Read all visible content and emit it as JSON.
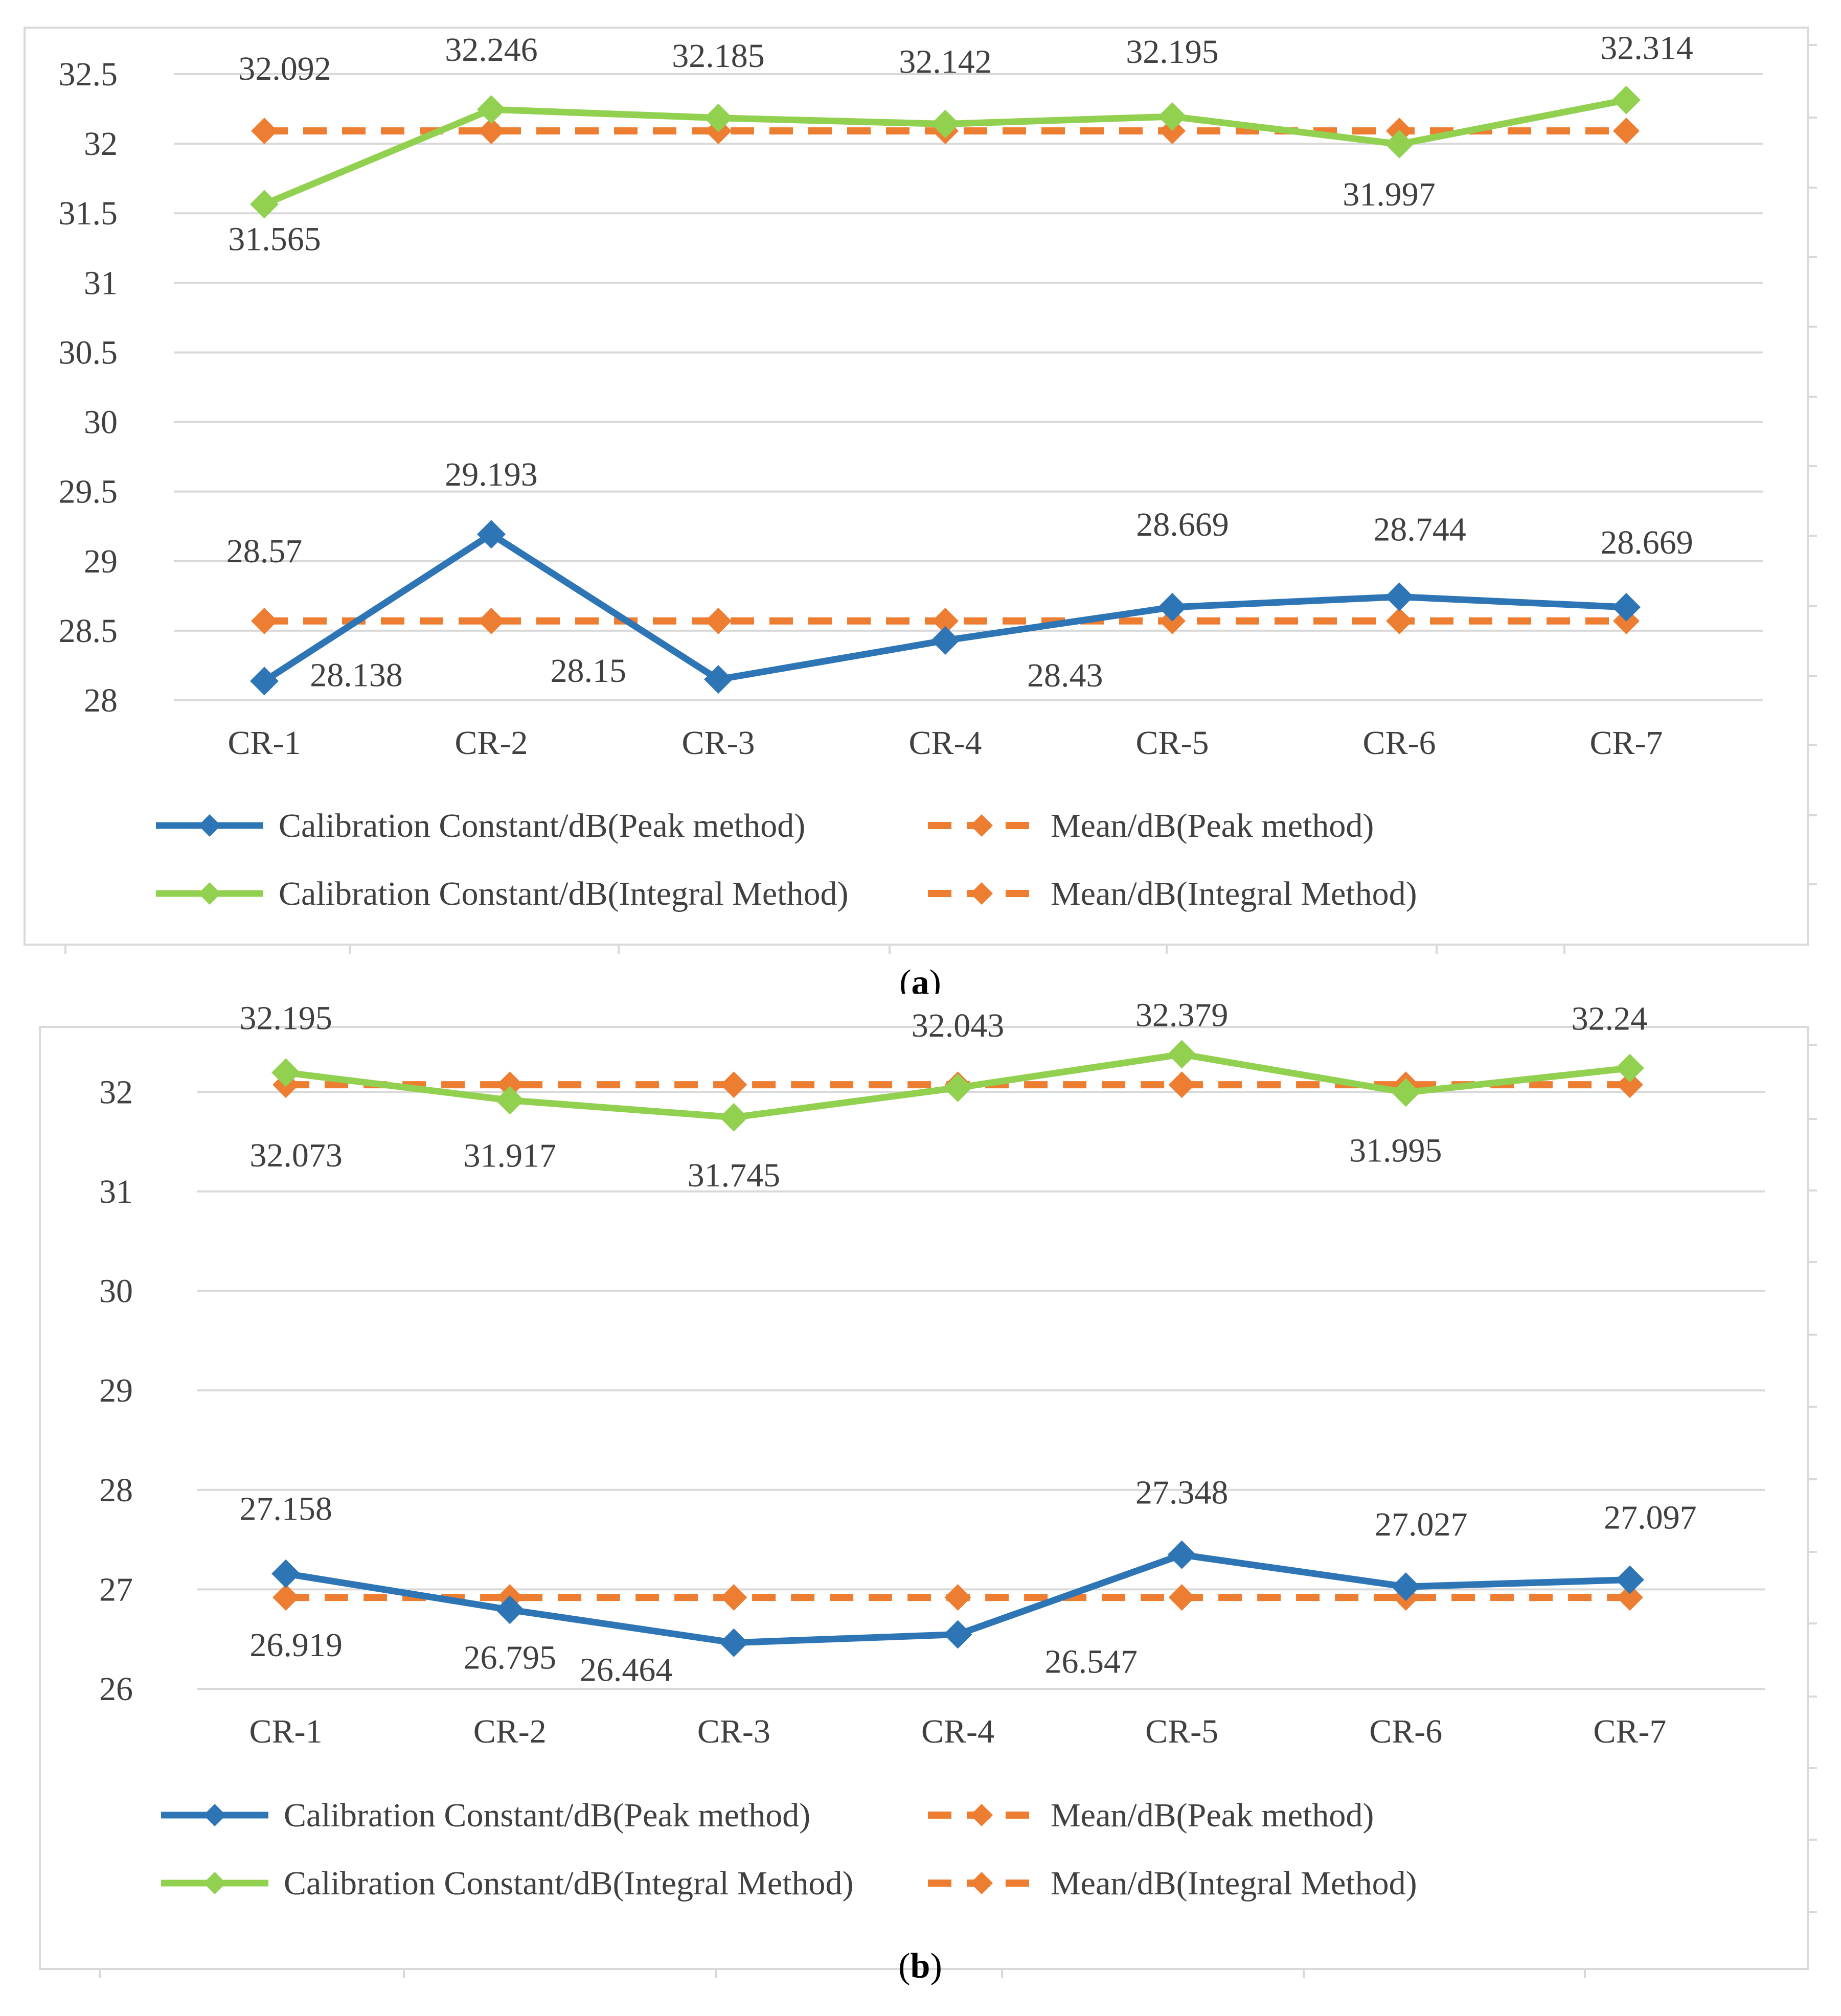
{
  "chart_data": [
    {
      "id": "a",
      "type": "line",
      "caption": {
        "open": "(",
        "letter": "a",
        "close": ")"
      },
      "categories": [
        "CR-1",
        "CR-2",
        "CR-3",
        "CR-4",
        "CR-5",
        "CR-6",
        "CR-7"
      ],
      "ylim": [
        28,
        32.5
      ],
      "yticks": [
        "28",
        "28.5",
        "29",
        "29.5",
        "30",
        "30.5",
        "31",
        "31.5",
        "32",
        "32.5"
      ],
      "grid": true,
      "legend_position": "bottom",
      "series": [
        {
          "name": "Calibration Constant/dB(Peak method)",
          "color": "#2E75B6",
          "dashed": false,
          "values": [
            28.138,
            29.193,
            28.15,
            28.43,
            28.669,
            28.744,
            28.669
          ],
          "labels": [
            "28.138",
            "29.193",
            "28.15",
            "28.43",
            "28.669",
            "28.744",
            "28.669"
          ]
        },
        {
          "name": "Mean/dB(Peak method)",
          "color": "#ED7D31",
          "dashed": true,
          "values": [
            28.57,
            28.57,
            28.57,
            28.57,
            28.57,
            28.57,
            28.57
          ],
          "labels": [
            "28.57",
            "",
            "",
            "",
            "",
            "",
            ""
          ]
        },
        {
          "name": "Calibration Constant/dB(Integral Method)",
          "color": "#92D050",
          "dashed": false,
          "values": [
            31.565,
            32.246,
            32.185,
            32.142,
            32.195,
            31.997,
            32.314
          ],
          "labels": [
            "31.565",
            "32.246",
            "32.185",
            "32.142",
            "32.195",
            "31.997",
            "32.314"
          ]
        },
        {
          "name": "Mean/dB(Integral Method)",
          "color": "#ED7D31",
          "dashed": true,
          "values": [
            32.092,
            32.092,
            32.092,
            32.092,
            32.092,
            32.092,
            32.092
          ],
          "labels": [
            "32.092",
            "",
            "",
            "",
            "",
            "",
            ""
          ]
        }
      ]
    },
    {
      "id": "b",
      "type": "line",
      "caption": {
        "open": "(",
        "letter": "b",
        "close": ")"
      },
      "categories": [
        "CR-1",
        "CR-2",
        "CR-3",
        "CR-4",
        "CR-5",
        "CR-6",
        "CR-7"
      ],
      "ylim": [
        26,
        32.5
      ],
      "yticks": [
        "26",
        "27",
        "28",
        "29",
        "30",
        "31",
        "32"
      ],
      "grid": true,
      "legend_position": "bottom",
      "series": [
        {
          "name": "Calibration Constant/dB(Peak method)",
          "color": "#2E75B6",
          "dashed": false,
          "values": [
            27.158,
            26.795,
            26.464,
            26.547,
            27.348,
            27.027,
            27.097
          ],
          "labels": [
            "27.158",
            "26.795",
            "26.464",
            "26.547",
            "27.348",
            "27.027",
            "27.097"
          ]
        },
        {
          "name": "Mean/dB(Peak method)",
          "color": "#ED7D31",
          "dashed": true,
          "values": [
            26.919,
            26.919,
            26.919,
            26.919,
            26.919,
            26.919,
            26.919
          ],
          "labels": [
            "26.919",
            "",
            "",
            "",
            "",
            "",
            ""
          ]
        },
        {
          "name": "Calibration Constant/dB(Integral Method)",
          "color": "#92D050",
          "dashed": false,
          "values": [
            32.195,
            31.917,
            31.745,
            32.043,
            32.379,
            31.995,
            32.24
          ],
          "labels": [
            "32.195",
            "31.917",
            "31.745",
            "32.043",
            "32.379",
            "31.995",
            "32.24"
          ]
        },
        {
          "name": "Mean/dB(Integral Method)",
          "color": "#ED7D31",
          "dashed": true,
          "values": [
            32.073,
            32.073,
            32.073,
            32.073,
            32.073,
            32.073,
            32.073
          ],
          "labels": [
            "32.073",
            "",
            "",
            "",
            "",
            "",
            ""
          ]
        }
      ]
    }
  ]
}
